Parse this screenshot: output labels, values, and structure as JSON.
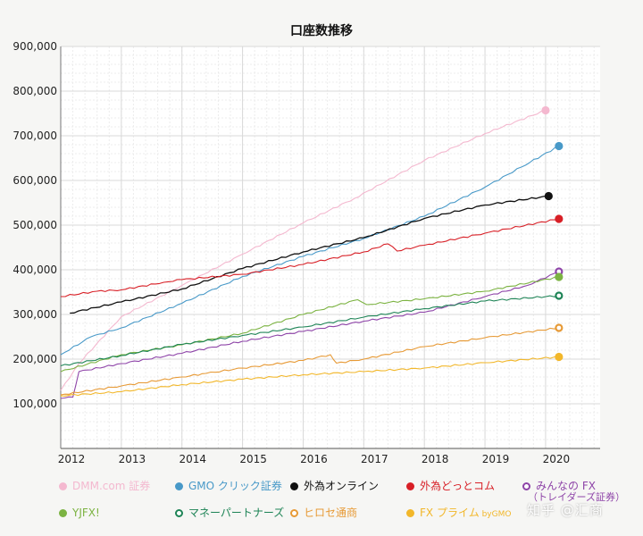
{
  "chart_data": {
    "type": "line",
    "title": "口座数推移",
    "xlabel": "",
    "ylabel": "",
    "xlim": [
      2012.0,
      2020.9
    ],
    "ylim": [
      0,
      900000
    ],
    "y_ticks": [
      100000,
      200000,
      300000,
      400000,
      500000,
      600000,
      700000,
      800000,
      900000
    ],
    "y_tick_labels": [
      "100,000",
      "200,000",
      "300,000",
      "400,000",
      "500,000",
      "600,000",
      "700,000",
      "800,000",
      "900,000"
    ],
    "x_ticks": [
      2012,
      2013,
      2014,
      2015,
      2016,
      2017,
      2018,
      2019,
      2020
    ],
    "x_tick_labels": [
      "2012",
      "2013",
      "2014",
      "2015",
      "2016",
      "2017",
      "2018",
      "2019",
      "2020"
    ],
    "grid": true,
    "legend_position": "bottom",
    "series": [
      {
        "name": "DMM.com 証券",
        "color": "#f4b8cf",
        "marker": "filled",
        "x": [
          2012.0,
          2012.3,
          2013.0,
          2014.0,
          2015.0,
          2016.0,
          2016.85,
          2018.0,
          2019.0,
          2020.0
        ],
        "y": [
          130000,
          190000,
          295000,
          365000,
          435000,
          505000,
          560000,
          645000,
          705000,
          757000
        ]
      },
      {
        "name": "GMO クリック証券",
        "color": "#4899c8",
        "marker": "filled",
        "x": [
          2012.0,
          2012.5,
          2013.0,
          2014.0,
          2015.0,
          2016.0,
          2017.0,
          2018.0,
          2019.0,
          2019.6,
          2020.22
        ],
        "y": [
          210000,
          250000,
          270000,
          325000,
          385000,
          430000,
          470000,
          520000,
          585000,
          630000,
          677000
        ]
      },
      {
        "name": "外為オンライン",
        "color": "#111111",
        "marker": "filled",
        "x": [
          2012.15,
          2013.0,
          2014.0,
          2015.0,
          2016.0,
          2017.0,
          2018.0,
          2019.0,
          2020.05
        ],
        "y": [
          303000,
          328000,
          357000,
          403000,
          440000,
          472000,
          515000,
          545000,
          565000
        ]
      },
      {
        "name": "外為どっとコム",
        "color": "#d81f26",
        "marker": "filled",
        "x": [
          2012.0,
          2012.6,
          2013.0,
          2013.7,
          2014.0,
          2015.0,
          2016.0,
          2017.0,
          2017.4,
          2017.55,
          2018.0,
          2019.0,
          2020.22
        ],
        "y": [
          340000,
          352000,
          355000,
          372000,
          378000,
          390000,
          412000,
          440000,
          458000,
          442000,
          455000,
          482000,
          514000
        ]
      },
      {
        "name": "みんなの FX",
        "subname": "（トレイダーズ証券）",
        "color": "#8e44a8",
        "marker": "hollow",
        "x": [
          2012.0,
          2012.2,
          2012.3,
          2013.0,
          2014.0,
          2015.0,
          2016.0,
          2017.0,
          2018.0,
          2019.0,
          2019.7,
          2020.22
        ],
        "y": [
          112000,
          115000,
          172000,
          190000,
          213000,
          240000,
          262000,
          285000,
          305000,
          340000,
          365000,
          396000
        ]
      },
      {
        "name": "YJFX!",
        "color": "#7cb342",
        "marker": "filled",
        "x": [
          2012.0,
          2013.0,
          2014.0,
          2015.0,
          2016.0,
          2016.9,
          2017.05,
          2018.0,
          2019.0,
          2020.22
        ],
        "y": [
          172000,
          210000,
          232000,
          258000,
          300000,
          333000,
          322000,
          335000,
          352000,
          384000
        ]
      },
      {
        "name": "マネーパートナーズ",
        "color": "#1e8456",
        "marker": "hollow",
        "x": [
          2012.0,
          2013.0,
          2014.0,
          2015.0,
          2016.0,
          2017.0,
          2018.0,
          2019.0,
          2020.22
        ],
        "y": [
          185000,
          208000,
          233000,
          253000,
          272000,
          294000,
          313000,
          330000,
          342000
        ]
      },
      {
        "name": "ヒロセ通商",
        "color": "#e79a36",
        "marker": "hollow",
        "x": [
          2012.0,
          2013.0,
          2014.0,
          2014.4,
          2015.0,
          2016.0,
          2016.45,
          2016.55,
          2017.0,
          2018.0,
          2019.0,
          2020.22
        ],
        "y": [
          120000,
          140000,
          160000,
          168000,
          180000,
          197000,
          210000,
          191000,
          200000,
          228000,
          248000,
          270000
        ]
      },
      {
        "name": "FX プライム",
        "suffix": "byGMO",
        "color": "#f2b72a",
        "marker": "filled",
        "x": [
          2012.0,
          2013.0,
          2014.0,
          2015.0,
          2016.0,
          2017.0,
          2018.0,
          2019.0,
          2020.22
        ],
        "y": [
          118000,
          127000,
          143000,
          155000,
          165000,
          172000,
          180000,
          192000,
          205000
        ]
      }
    ]
  },
  "watermark": "知乎 @汇商"
}
